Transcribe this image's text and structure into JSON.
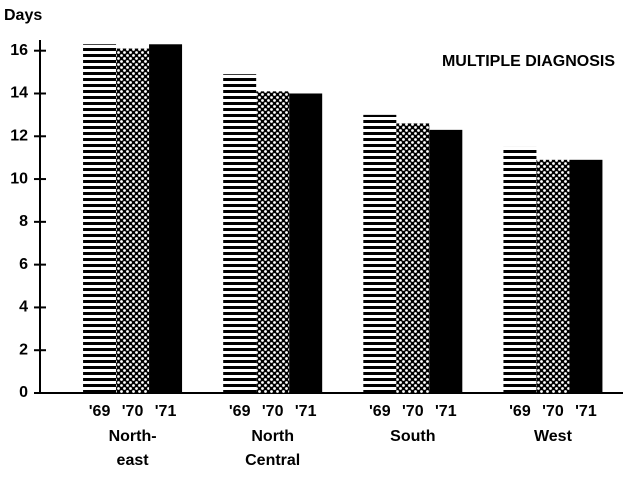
{
  "chart_data": {
    "type": "bar",
    "y_label": "Days",
    "annotation": "MULTIPLE DIAGNOSIS",
    "categories": [
      "North-\neast",
      "North\nCentral",
      "South",
      "West"
    ],
    "series": [
      {
        "name": "'69",
        "color": "#000000",
        "pattern": "horizontal-lines",
        "values": [
          16.3,
          14.9,
          13.0,
          11.5
        ]
      },
      {
        "name": "'70",
        "color": "#000000",
        "pattern": "dots",
        "values": [
          16.1,
          14.1,
          12.6,
          10.9
        ]
      },
      {
        "name": "'71",
        "color": "#000000",
        "pattern": "solid",
        "values": [
          16.3,
          14.0,
          12.3,
          10.9
        ]
      }
    ],
    "ylim": [
      0,
      16.5
    ],
    "yticks": [
      0,
      2,
      4,
      6,
      8,
      10,
      12,
      14,
      16
    ],
    "grid": false
  }
}
